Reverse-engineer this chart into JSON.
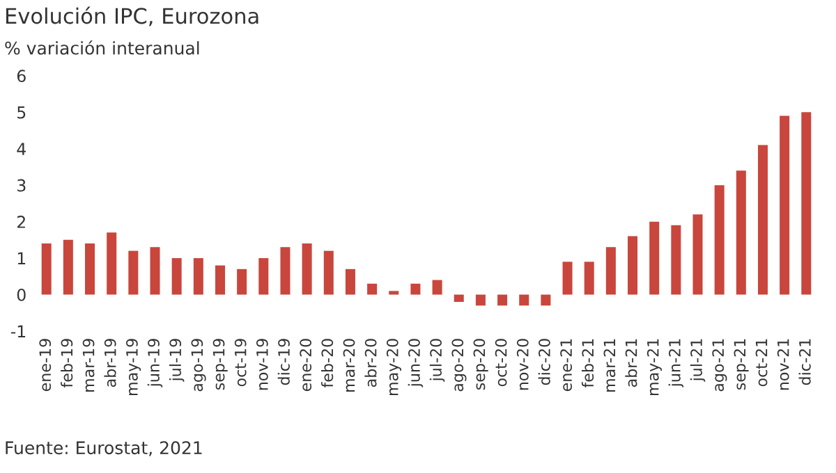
{
  "chart_data": {
    "type": "bar",
    "title": "Evolución IPC, Eurozona",
    "subtitle": "% variación interanual",
    "categories": [
      "ene-19",
      "feb-19",
      "mar-19",
      "abr-19",
      "may-19",
      "jun-19",
      "jul-19",
      "ago-19",
      "sep-19",
      "oct-19",
      "nov-19",
      "dic-19",
      "ene-20",
      "feb-20",
      "mar-20",
      "abr-20",
      "may-20",
      "jun-20",
      "jul-20",
      "ago-20",
      "sep-20",
      "oct-20",
      "nov-20",
      "dic-20",
      "ene-21",
      "feb-21",
      "mar-21",
      "abr-21",
      "may-21",
      "jun-21",
      "jul-21",
      "ago-21",
      "sep-21",
      "oct-21",
      "nov-21",
      "dic-21"
    ],
    "values": [
      1.4,
      1.5,
      1.4,
      1.7,
      1.2,
      1.3,
      1.0,
      1.0,
      0.8,
      0.7,
      1.0,
      1.3,
      1.4,
      1.2,
      0.7,
      0.3,
      0.1,
      0.3,
      0.4,
      -0.2,
      -0.3,
      -0.3,
      -0.3,
      -0.3,
      0.9,
      0.9,
      1.3,
      1.6,
      2.0,
      1.9,
      2.2,
      3.0,
      3.4,
      4.1,
      4.9,
      5.0
    ],
    "color": "#c9463d",
    "ylim": [
      -1,
      6
    ],
    "yticks": [
      -1,
      0,
      1,
      2,
      3,
      4,
      5,
      6
    ],
    "grid": false,
    "legend": false,
    "annotations": [
      "Fuente: Eurostat, 2021"
    ]
  }
}
